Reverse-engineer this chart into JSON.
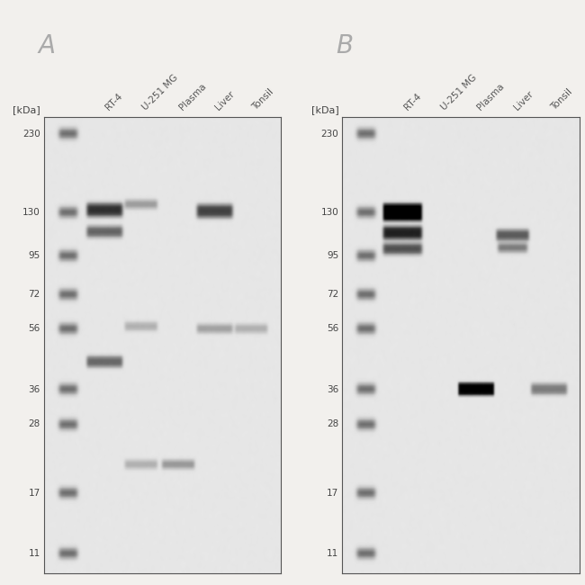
{
  "background_color": "#f2f0ed",
  "figure_size": [
    6.5,
    6.5
  ],
  "dpi": 100,
  "panel_label_fontsize": 20,
  "panel_label_color": "#aaaaaa",
  "kda_label": "[kDa]",
  "kda_fontsize": 8,
  "lane_labels": [
    "RT-4",
    "U-251 MG",
    "Plasma",
    "Liver",
    "Tonsil"
  ],
  "lane_label_fontsize": 7.5,
  "marker_positions": [
    230,
    130,
    95,
    72,
    56,
    36,
    28,
    17,
    11
  ],
  "marker_fontsize": 7.5,
  "marker_color": "#444444",
  "panel_A": {
    "bands": [
      {
        "lane": 1,
        "kda": 133,
        "intensity": 0.72,
        "bw": 22,
        "bh": 5,
        "blur": 2.0
      },
      {
        "lane": 1,
        "kda": 113,
        "intensity": 0.52,
        "bw": 22,
        "bh": 4,
        "blur": 2.0
      },
      {
        "lane": 1,
        "kda": 44,
        "intensity": 0.5,
        "bw": 22,
        "bh": 4,
        "blur": 1.8
      },
      {
        "lane": 2,
        "kda": 138,
        "intensity": 0.3,
        "bw": 20,
        "bh": 3,
        "blur": 1.8
      },
      {
        "lane": 2,
        "kda": 57,
        "intensity": 0.22,
        "bw": 20,
        "bh": 3,
        "blur": 1.8
      },
      {
        "lane": 2,
        "kda": 21,
        "intensity": 0.22,
        "bw": 20,
        "bh": 3,
        "blur": 1.8
      },
      {
        "lane": 4,
        "kda": 131,
        "intensity": 0.65,
        "bw": 22,
        "bh": 5,
        "blur": 2.0
      },
      {
        "lane": 4,
        "kda": 56,
        "intensity": 0.28,
        "bw": 22,
        "bh": 3,
        "blur": 1.8
      },
      {
        "lane": 5,
        "kda": 56,
        "intensity": 0.22,
        "bw": 20,
        "bh": 3,
        "blur": 1.8
      },
      {
        "lane": 3,
        "kda": 21,
        "intensity": 0.32,
        "bw": 20,
        "bh": 3,
        "blur": 1.8
      }
    ]
  },
  "panel_B": {
    "bands": [
      {
        "lane": 1,
        "kda": 130,
        "intensity": 0.95,
        "bw": 24,
        "bh": 7,
        "blur": 1.5
      },
      {
        "lane": 1,
        "kda": 112,
        "intensity": 0.78,
        "bw": 24,
        "bh": 5,
        "blur": 1.8
      },
      {
        "lane": 1,
        "kda": 100,
        "intensity": 0.6,
        "bw": 24,
        "bh": 4,
        "blur": 2.0
      },
      {
        "lane": 3,
        "kda": 36,
        "intensity": 0.9,
        "bw": 22,
        "bh": 5,
        "blur": 1.2
      },
      {
        "lane": 4,
        "kda": 110,
        "intensity": 0.55,
        "bw": 20,
        "bh": 4,
        "blur": 1.8
      },
      {
        "lane": 4,
        "kda": 101,
        "intensity": 0.45,
        "bw": 18,
        "bh": 3,
        "blur": 2.0
      },
      {
        "lane": 5,
        "kda": 36,
        "intensity": 0.42,
        "bw": 22,
        "bh": 4,
        "blur": 1.8
      }
    ]
  }
}
